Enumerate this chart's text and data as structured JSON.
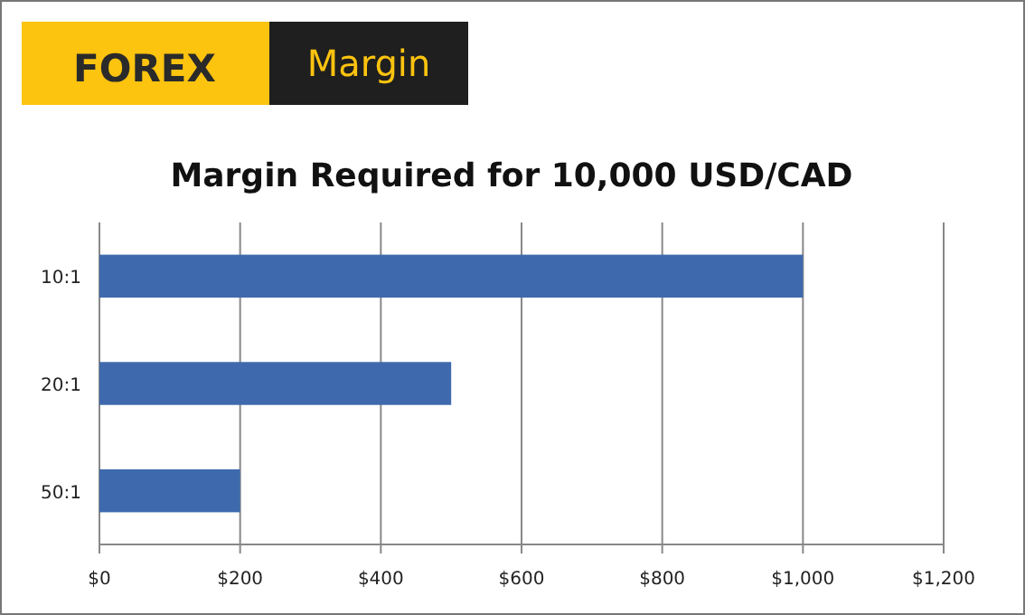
{
  "chart_data": {
    "type": "bar",
    "orientation": "horizontal",
    "title": "Margin Required for 10,000  USD/CAD",
    "annotations": [
      "FOREX",
      "Margin"
    ],
    "categories": [
      "10:1",
      "20:1",
      "50:1"
    ],
    "values": [
      1000,
      500,
      200
    ],
    "color": "#3e6aad",
    "xlim": [
      0,
      1200
    ],
    "xticks": [
      {
        "value": 0,
        "label": "$0"
      },
      {
        "value": 200,
        "label": "$200"
      },
      {
        "value": 400,
        "label": "$400"
      },
      {
        "value": 600,
        "label": "$600"
      },
      {
        "value": 800,
        "label": "$800"
      },
      {
        "value": 1000,
        "label": "$1,000"
      },
      {
        "value": 1200,
        "label": "$1,200"
      }
    ],
    "grid": "x"
  }
}
